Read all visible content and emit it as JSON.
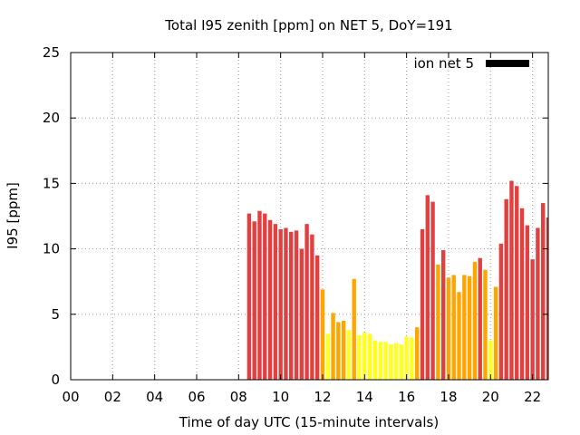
{
  "chart_data": {
    "type": "bar",
    "title": "Total I95 zenith [ppm] on NET 5, DoY=191",
    "xlabel": "Time of day UTC (15-minute intervals)",
    "ylabel": "I95 [ppm]",
    "xlim": [
      0,
      22.75
    ],
    "ylim": [
      0,
      25
    ],
    "xticks": [
      "00",
      "02",
      "04",
      "06",
      "08",
      "10",
      "12",
      "14",
      "16",
      "18",
      "20",
      "22"
    ],
    "yticks": [
      "0",
      "5",
      "10",
      "15",
      "20",
      "25"
    ],
    "grid": true,
    "legend": {
      "label": "ion net 5",
      "position": "top-right",
      "color": "#000000"
    },
    "bar_colors": {
      "high": "#e04040",
      "medium": "#ffa500",
      "low": "#ffff20"
    },
    "series": [
      {
        "x": [
          8.5,
          8.75,
          9.0,
          9.25,
          9.5,
          9.75,
          10.0,
          10.25,
          10.5,
          10.75,
          11.0,
          11.25,
          11.5,
          11.75,
          12.0,
          12.25,
          12.5,
          12.75,
          13.0,
          13.25,
          13.5,
          13.75,
          14.0,
          14.25,
          14.5,
          14.75,
          15.0,
          15.25,
          15.5,
          15.75,
          16.0,
          16.25,
          16.5,
          16.75,
          17.0,
          17.25,
          17.5,
          17.75,
          18.0,
          18.25,
          18.5,
          18.75,
          19.0,
          19.25,
          19.5,
          19.75,
          20.0,
          20.25,
          20.5,
          20.75,
          21.0,
          21.25,
          21.5,
          21.75,
          22.0,
          22.25,
          22.5,
          22.75
        ],
        "values": [
          12.7,
          12.1,
          12.9,
          12.7,
          12.2,
          11.9,
          11.5,
          11.6,
          11.3,
          11.4,
          10.0,
          11.9,
          11.1,
          9.5,
          6.9,
          3.5,
          5.1,
          4.4,
          4.5,
          3.8,
          7.7,
          3.4,
          3.6,
          3.5,
          3.0,
          2.9,
          2.9,
          2.7,
          2.8,
          2.7,
          3.3,
          3.2,
          4.0,
          11.5,
          14.1,
          13.6,
          8.8,
          9.9,
          7.8,
          8.0,
          6.7,
          8.0,
          7.9,
          9.0,
          9.3,
          8.4,
          3.0,
          7.1,
          10.4,
          13.8,
          15.2,
          14.8,
          13.1,
          11.8,
          9.2,
          11.6,
          13.5,
          12.4
        ]
      }
    ]
  }
}
